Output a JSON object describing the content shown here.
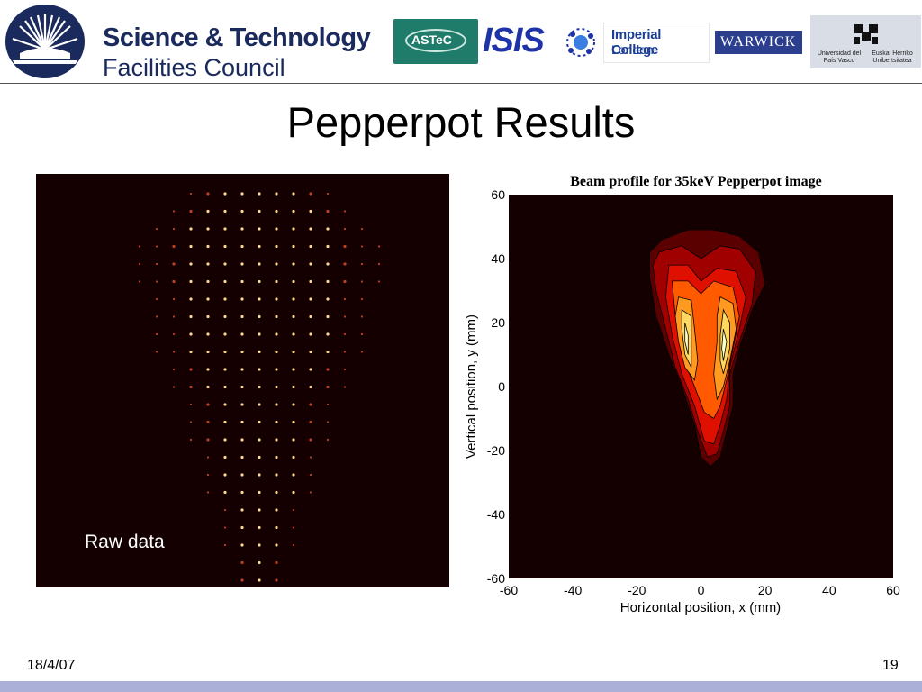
{
  "header": {
    "org_line1": "Science & Technology",
    "org_line2": "Facilities Council",
    "partners": {
      "astec": "ASTeC",
      "isis": "ISIS",
      "imperial_line1": "Imperial College",
      "imperial_line2": "London",
      "warwick": "WARWICK",
      "upv_left": "Universidad del País Vasco",
      "upv_right": "Euskal Herriko Unibertsitatea"
    }
  },
  "slide": {
    "title": "Pepperpot Results",
    "raw_label": "Raw data",
    "date": "18/4/07",
    "page_number": "19"
  },
  "colors": {
    "plot_background": "#140000",
    "footer_bar": "#aab0d8",
    "org_blue": "#1b2a5c",
    "contour_levels": [
      "#5a0000",
      "#a00000",
      "#e01000",
      "#ff5a00",
      "#ff9a20",
      "#ffd860",
      "#ffffc8"
    ]
  },
  "chart_data": {
    "type": "contour",
    "title": "Beam profile for 35keV Pepperpot image",
    "xlabel": "Horizontal position, x (mm)",
    "ylabel": "Vertical position, y (mm)",
    "xlim": [
      -60,
      60
    ],
    "ylim": [
      -60,
      60
    ],
    "xticks": [
      -60,
      -40,
      -20,
      0,
      20,
      40,
      60
    ],
    "yticks": [
      -60,
      -40,
      -20,
      0,
      20,
      40,
      60
    ],
    "grid": false,
    "levels": [
      {
        "level": 1,
        "polygon": [
          [
            -12,
            46
          ],
          [
            -4,
            49
          ],
          [
            4,
            49
          ],
          [
            12,
            47
          ],
          [
            18,
            42
          ],
          [
            20,
            32
          ],
          [
            16,
            24
          ],
          [
            12,
            12
          ],
          [
            10,
            4
          ],
          [
            10,
            -6
          ],
          [
            8,
            -14
          ],
          [
            6,
            -22
          ],
          [
            3,
            -25
          ],
          [
            0,
            -22
          ],
          [
            -2,
            -12
          ],
          [
            -6,
            0
          ],
          [
            -10,
            10
          ],
          [
            -14,
            22
          ],
          [
            -16,
            34
          ],
          [
            -16,
            42
          ]
        ]
      },
      {
        "level": 2,
        "polygon": [
          [
            -13,
            42
          ],
          [
            -6,
            44
          ],
          [
            0,
            40
          ],
          [
            6,
            44
          ],
          [
            12,
            43
          ],
          [
            17,
            36
          ],
          [
            16,
            26
          ],
          [
            12,
            14
          ],
          [
            9,
            4
          ],
          [
            9,
            -6
          ],
          [
            7,
            -14
          ],
          [
            5,
            -21
          ],
          [
            2,
            -22
          ],
          [
            -1,
            -14
          ],
          [
            -4,
            -4
          ],
          [
            -8,
            6
          ],
          [
            -11,
            18
          ],
          [
            -14,
            30
          ],
          [
            -15,
            38
          ]
        ]
      },
      {
        "level": 3,
        "polygon": [
          [
            -10,
            38
          ],
          [
            -4,
            38
          ],
          [
            0,
            33
          ],
          [
            5,
            37
          ],
          [
            11,
            36
          ],
          [
            14,
            28
          ],
          [
            12,
            18
          ],
          [
            9,
            6
          ],
          [
            8,
            -4
          ],
          [
            6,
            -12
          ],
          [
            4,
            -18
          ],
          [
            1,
            -17
          ],
          [
            -2,
            -6
          ],
          [
            -6,
            4
          ],
          [
            -9,
            16
          ],
          [
            -11,
            28
          ]
        ]
      },
      {
        "level": 4,
        "polygon": [
          [
            -9,
            33
          ],
          [
            -4,
            33
          ],
          [
            0,
            29
          ],
          [
            4,
            33
          ],
          [
            10,
            31
          ],
          [
            12,
            22
          ],
          [
            10,
            12
          ],
          [
            8,
            2
          ],
          [
            6,
            -6
          ],
          [
            4,
            -10
          ],
          [
            1,
            -8
          ],
          [
            -2,
            0
          ],
          [
            -6,
            10
          ],
          [
            -8,
            22
          ]
        ]
      },
      {
        "level": 5,
        "polygon": [
          [
            -7,
            28
          ],
          [
            -3,
            27
          ],
          [
            -2,
            18
          ],
          [
            -1,
            8
          ],
          [
            -2,
            2
          ],
          [
            -5,
            6
          ],
          [
            -7,
            14
          ],
          [
            -8,
            22
          ]
        ]
      },
      {
        "level": 5,
        "polygon": [
          [
            6,
            28
          ],
          [
            10,
            26
          ],
          [
            11,
            18
          ],
          [
            9,
            8
          ],
          [
            7,
            0
          ],
          [
            5,
            -4
          ],
          [
            4,
            4
          ],
          [
            5,
            14
          ],
          [
            5,
            22
          ]
        ]
      },
      {
        "level": 6,
        "polygon": [
          [
            -6,
            24
          ],
          [
            -3,
            22
          ],
          [
            -3,
            12
          ],
          [
            -3,
            6
          ],
          [
            -5,
            10
          ],
          [
            -6,
            18
          ]
        ]
      },
      {
        "level": 6,
        "polygon": [
          [
            7,
            24
          ],
          [
            9,
            20
          ],
          [
            9,
            12
          ],
          [
            7,
            4
          ],
          [
            6,
            8
          ],
          [
            6,
            16
          ]
        ]
      },
      {
        "level": 7,
        "polygon": [
          [
            -5,
            20
          ],
          [
            -4,
            16
          ],
          [
            -4,
            10
          ],
          [
            -5,
            14
          ]
        ]
      },
      {
        "level": 7,
        "polygon": [
          [
            7,
            18
          ],
          [
            8,
            14
          ],
          [
            7,
            8
          ],
          [
            6.5,
            12
          ]
        ]
      }
    ]
  },
  "raw_image": {
    "dot_color_bright": "#ffd890",
    "dot_color_dim": "#c04020"
  }
}
